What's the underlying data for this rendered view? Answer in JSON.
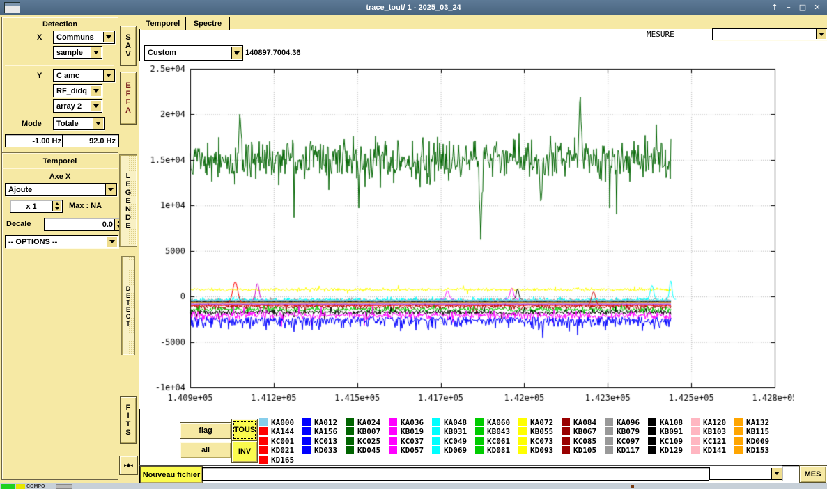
{
  "window": {
    "title": "trace_tout/ 1 - 2025_03_24",
    "controls": {
      "shade_icon": "↑",
      "minimize_icon": "–",
      "maximize_icon": "□",
      "close_icon": "✕"
    }
  },
  "sidebar": {
    "detection": {
      "title": "Detection",
      "x_label": "X",
      "x_combo": "Communs",
      "x_sub_combo": "sample",
      "y_label": "Y",
      "y_combo": "C amc",
      "y_sub_combo": "RF_didq",
      "y_array_combo": "array 2",
      "mode_label": "Mode",
      "mode_combo": "Totale",
      "freq_min": "-1.00 Hz",
      "freq_max": "92.0 Hz"
    },
    "temporel": {
      "title": "Temporel",
      "axe_x_label": "Axe X",
      "axe_x_combo": "Ajoute",
      "multiplier_value": "x 1",
      "max_label": "Max : NA",
      "decale_label": "Decale",
      "decale_value": "0.0",
      "options_combo": "-- OPTIONS --"
    }
  },
  "vstrip": {
    "sav": "SAV",
    "effa": "EFFA",
    "legende": "LEGENDE",
    "detect": "DETECT",
    "fits": "FITS",
    "collapse_icon": "▸◆◂"
  },
  "tabs": [
    {
      "label": "Temporel",
      "active": true
    },
    {
      "label": "Spectre",
      "active": false
    }
  ],
  "mesure": {
    "label": "MESURE"
  },
  "toolbar": {
    "combo_value": "Custom",
    "readout": "140897,7004.36"
  },
  "chart_data": {
    "type": "line",
    "title": "",
    "xlabel": "",
    "ylabel": "",
    "xlim": [
      140900,
      142800
    ],
    "ylim": [
      -10000,
      25000
    ],
    "x_tick_labels": [
      "1.409e+05",
      "1.412e+05",
      "1.415e+05",
      "1.417e+05",
      "1.42e+05",
      "1.423e+05",
      "1.425e+05",
      "1.428e+05"
    ],
    "y_tick_labels": [
      "2.5e+04",
      "2e+04",
      "1.5e+04",
      "1e+04",
      "5000",
      "0",
      "-5000",
      "-1e+04"
    ],
    "y_tick_values": [
      25000,
      20000,
      15000,
      10000,
      5000,
      0,
      -5000,
      -10000
    ],
    "grid": true,
    "legend_position": "below",
    "data_end_frac": 0.823,
    "series": [
      {
        "name": "darkred-noise-band",
        "color": "#990000",
        "mean": -1150,
        "amplitude": 280,
        "style": "band"
      },
      {
        "name": "green-speckle-band",
        "color": "#00cc00",
        "mean": -1450,
        "amplitude": 240,
        "style": "band"
      },
      {
        "name": "black-noise-band",
        "color": "#000000",
        "mean": -1750,
        "amplitude": 280,
        "style": "band"
      },
      {
        "name": "magenta-noise-band",
        "color": "#ff00ff",
        "mean": -2100,
        "amplitude": 430,
        "style": "band"
      },
      {
        "name": "blue-down-spikes",
        "color": "#0000ff",
        "mean": -2500,
        "amplitude": 1100,
        "style": "spiky-down"
      },
      {
        "name": "gray-up-spikes",
        "color": "#999999",
        "mean": -450,
        "amplitude": 350,
        "style": "spiky-up"
      },
      {
        "name": "cyan-up-spikes",
        "color": "#00ffff",
        "mean": -450,
        "amplitude": 400,
        "style": "spiky-up"
      },
      {
        "name": "yellow-band",
        "color": "#ffff00",
        "mean": 750,
        "amplitude": 180,
        "style": "band"
      },
      {
        "name": "skyblue-line",
        "color": "#87ceeb",
        "mean": -500,
        "amplitude": 35,
        "style": "line"
      },
      {
        "name": "black-line",
        "color": "#000000",
        "mean": -580,
        "amplitude": 30,
        "style": "line"
      },
      {
        "name": "orange-line",
        "color": "#ffa500",
        "mean": -650,
        "amplitude": 30,
        "style": "line"
      },
      {
        "name": "blue-line",
        "color": "#0000ff",
        "mean": -720,
        "amplitude": 30,
        "style": "line"
      },
      {
        "name": "pink-line",
        "color": "#ffb6c1",
        "mean": -790,
        "amplitude": 30,
        "style": "line"
      },
      {
        "name": "violet-line",
        "color": "#9932cc",
        "mean": -860,
        "amplitude": 30,
        "style": "line"
      },
      {
        "name": "red-line",
        "color": "#ff0000",
        "mean": -1000,
        "amplitude": 55,
        "style": "line"
      },
      {
        "name": "main-signal",
        "color": "#006400",
        "mean": 15000,
        "amplitude": 2300,
        "style": "band",
        "events": [
          {
            "x": 0.085,
            "value": 20600
          },
          {
            "x": 0.497,
            "value": 6200
          },
          {
            "x": 0.6,
            "value": 9700
          },
          {
            "x": 0.667,
            "value": 22800
          }
        ]
      }
    ],
    "bumps": [
      {
        "x": 0.077,
        "peak": 1600,
        "base": -700,
        "width": 0.006,
        "color": "#ff0000"
      },
      {
        "x": 0.115,
        "peak": 1400,
        "base": -400,
        "width": 0.004,
        "color": "#cc00cc"
      },
      {
        "x": 0.44,
        "peak": 600,
        "base": -300,
        "width": 0.004,
        "color": "#ff00ff"
      },
      {
        "x": 0.55,
        "peak": 900,
        "base": -300,
        "width": 0.004,
        "color": "#ff00ff"
      },
      {
        "x": 0.56,
        "peak": 800,
        "base": -300,
        "width": 0.003,
        "color": "#000000"
      },
      {
        "x": 0.69,
        "peak": 500,
        "base": -1000,
        "width": 0.005,
        "color": "#cc0000"
      },
      {
        "x": 0.79,
        "peak": 1200,
        "base": -300,
        "width": 0.004,
        "color": "#00ffff"
      },
      {
        "x": 0.822,
        "peak": 1700,
        "base": -300,
        "width": 0.003,
        "color": "#00ffff"
      }
    ]
  },
  "legend": {
    "buttons": {
      "flag": "flag",
      "tous": "TOUS",
      "all": "all",
      "inv": "INV"
    },
    "rows": [
      [
        {
          "label": "KA000",
          "color": "#87ceeb"
        },
        {
          "label": "KA012",
          "color": "#0000ff"
        },
        {
          "label": "KA024",
          "color": "#006400"
        },
        {
          "label": "KA036",
          "color": "#ff00ff"
        },
        {
          "label": "KA048",
          "color": "#00ffff"
        },
        {
          "label": "KA060",
          "color": "#00cc00"
        },
        {
          "label": "KA072",
          "color": "#ffff00"
        },
        {
          "label": "KA084",
          "color": "#990000"
        },
        {
          "label": "KA096",
          "color": "#999999"
        },
        {
          "label": "KA108",
          "color": "#000000"
        },
        {
          "label": "KA120",
          "color": "#ffb6c1"
        },
        {
          "label": "KA132",
          "color": "#ffa500"
        }
      ],
      [
        {
          "label": "KA144",
          "color": "#ff0000"
        },
        {
          "label": "KA156",
          "color": "#0000ff"
        },
        {
          "label": "KB007",
          "color": "#006400"
        },
        {
          "label": "KB019",
          "color": "#ff00ff"
        },
        {
          "label": "KB031",
          "color": "#00ffff"
        },
        {
          "label": "KB043",
          "color": "#00cc00"
        },
        {
          "label": "KB055",
          "color": "#ffff00"
        },
        {
          "label": "KB067",
          "color": "#990000"
        },
        {
          "label": "KB079",
          "color": "#999999"
        },
        {
          "label": "KB091",
          "color": "#000000"
        },
        {
          "label": "KB103",
          "color": "#ffb6c1"
        },
        {
          "label": "KB115",
          "color": "#ffa500"
        }
      ],
      [
        {
          "label": "KC001",
          "color": "#ff0000"
        },
        {
          "label": "KC013",
          "color": "#0000ff"
        },
        {
          "label": "KC025",
          "color": "#006400"
        },
        {
          "label": "KC037",
          "color": "#ff00ff"
        },
        {
          "label": "KC049",
          "color": "#00ffff"
        },
        {
          "label": "KC061",
          "color": "#00cc00"
        },
        {
          "label": "KC073",
          "color": "#ffff00"
        },
        {
          "label": "KC085",
          "color": "#990000"
        },
        {
          "label": "KC097",
          "color": "#999999"
        },
        {
          "label": "KC109",
          "color": "#000000"
        },
        {
          "label": "KC121",
          "color": "#ffb6c1"
        },
        {
          "label": "KD009",
          "color": "#ffa500"
        }
      ],
      [
        {
          "label": "KD021",
          "color": "#ff0000"
        },
        {
          "label": "KD033",
          "color": "#0000ff"
        },
        {
          "label": "KD045",
          "color": "#006400"
        },
        {
          "label": "KD057",
          "color": "#ff00ff"
        },
        {
          "label": "KD069",
          "color": "#00ffff"
        },
        {
          "label": "KD081",
          "color": "#00cc00"
        },
        {
          "label": "KD093",
          "color": "#ffff00"
        },
        {
          "label": "KD105",
          "color": "#990000"
        },
        {
          "label": "KD117",
          "color": "#999999"
        },
        {
          "label": "KD129",
          "color": "#000000"
        },
        {
          "label": "KD141",
          "color": "#ffb6c1"
        },
        {
          "label": "KD153",
          "color": "#ffa500"
        }
      ],
      [
        {
          "label": "KD165",
          "color": "#ff0000"
        }
      ]
    ]
  },
  "bottom_bar": {
    "new_file_button": "Nouveau fichier",
    "file_input_value": "",
    "combo_value": "",
    "mes_button": "MES"
  },
  "taskbar": {
    "fragment_label": "COMPO"
  }
}
